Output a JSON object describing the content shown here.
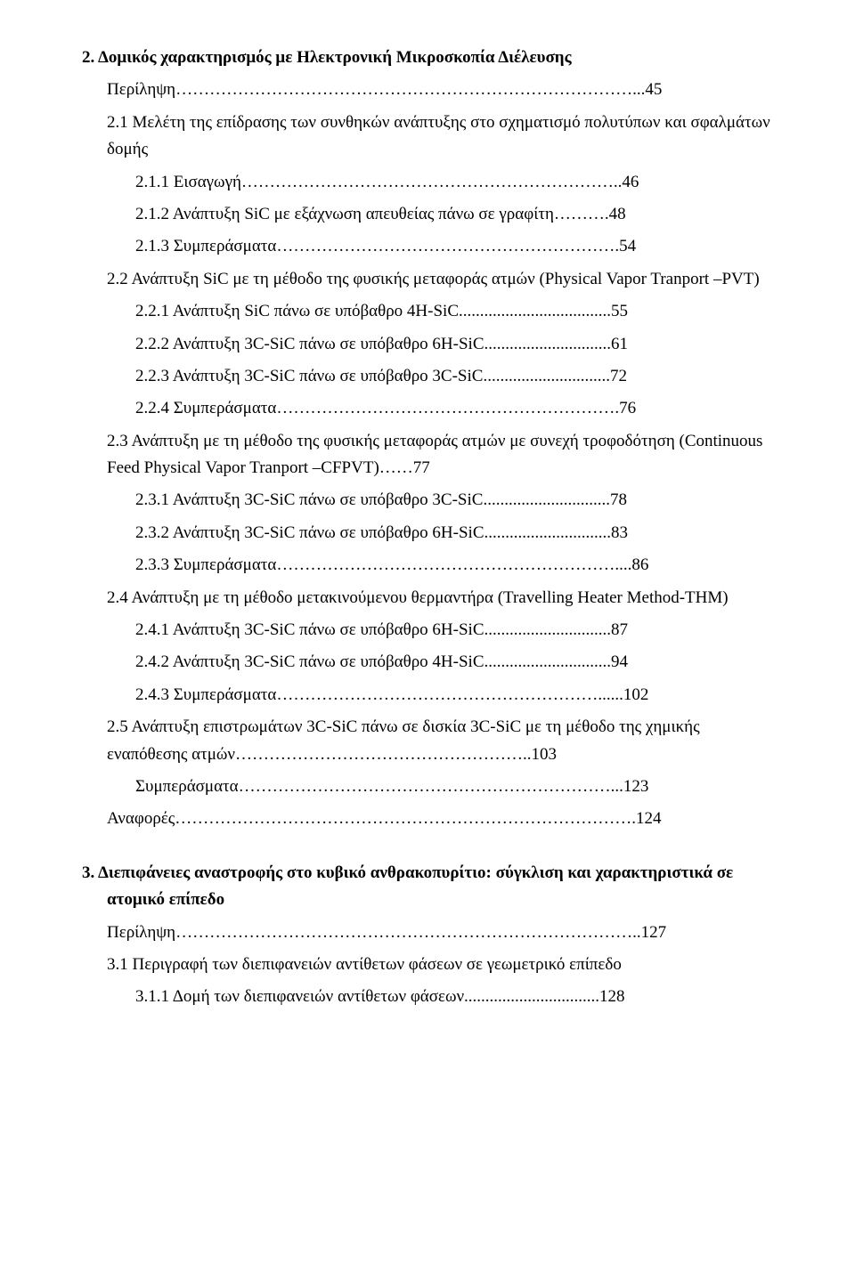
{
  "lines": [
    {
      "cls": "l0",
      "text": "2.  Δομικός χαρακτηρισμός με Ηλεκτρονική Μικροσκοπία Διέλευσης"
    },
    {
      "cls": "l1",
      "text": "Περίληψη………………………………………………………………………...45"
    },
    {
      "cls": "l1",
      "text": "2.1 Μελέτη της επίδρασης των συνθηκών ανάπτυξης στο σχηματισμό πολυτύπων και σφαλμάτων δομής"
    },
    {
      "cls": "l2",
      "text": "2.1.1   Εισαγωγή…………………………………………………………..46"
    },
    {
      "cls": "l2",
      "text": "2.1.2   Ανάπτυξη SiC με εξάχνωση απευθείας πάνω σε γραφίτη……….48"
    },
    {
      "cls": "l2",
      "text": "2.1.3   Συμπεράσματα…………………………………………………….54"
    },
    {
      "cls": "l1",
      "text": "2.2 Ανάπτυξη SiC με τη μέθοδο της φυσικής μεταφοράς ατμών (Physical Vapor Tranport –PVT)"
    },
    {
      "cls": "l2",
      "text": "2.2.1   Ανάπτυξη SiC πάνω σε υπόβαθρο 4H-SiC....................................55"
    },
    {
      "cls": "l2",
      "text": "2.2.2   Ανάπτυξη 3C-SiC πάνω σε υπόβαθρο 6H-SiC..............................61"
    },
    {
      "cls": "l2",
      "text": "2.2.3   Ανάπτυξη 3C-SiC πάνω σε υπόβαθρο 3C-SiC..............................72"
    },
    {
      "cls": "l2",
      "text": "2.2.4   Συμπεράσματα…………………………………………………….76"
    },
    {
      "cls": "l1",
      "text": "2.3 Ανάπτυξη με τη μέθοδο της φυσικής μεταφοράς ατμών με συνεχή τροφοδότηση (Continuous Feed Physical Vapor Tranport –CFPVT)……77"
    },
    {
      "cls": "l2",
      "text": "2.3.1   Ανάπτυξη 3C-SiC πάνω σε υπόβαθρο 3C-SiC..............................78"
    },
    {
      "cls": "l2",
      "text": "2.3.2   Ανάπτυξη 3C-SiC πάνω σε υπόβαθρο 6H-SiC..............................83"
    },
    {
      "cls": "l2",
      "text": "2.3.3   Συμπεράσματα……………………………………………………....86"
    },
    {
      "cls": "l1",
      "text": "2.4 Ανάπτυξη με τη μέθοδο μετακινούμενου θερμαντήρα (Travelling Heater Method-THM)"
    },
    {
      "cls": "l2",
      "text": "2.4.1   Ανάπτυξη 3C-SiC πάνω σε υπόβαθρο 6H-SiC..............................87"
    },
    {
      "cls": "l2",
      "text": "2.4.2   Ανάπτυξη 3C-SiC πάνω σε υπόβαθρο 4H-SiC..............................94"
    },
    {
      "cls": "l2",
      "text": "2.4.3   Συμπεράσματα…………………………………………………......102"
    },
    {
      "cls": "l1",
      "text": "2.5 Ανάπτυξη επιστρωμάτων 3C-SiC πάνω σε δισκία 3C-SiC με τη μέθοδο της χημικής εναπόθεσης ατμών……………………………………………..103"
    },
    {
      "cls": "l2",
      "text": "Συμπεράσματα…………………………………………………………...123"
    },
    {
      "cls": "l1",
      "text": "Αναφορές……………………………………………………………………….124"
    },
    {
      "cls": "l0b",
      "text": "3.  Διεπιφάνειες αναστροφής στο κυβικό ανθρακοπυρίτιο: σύγκλιση και χαρακτηριστικά σε ατομικό επίπεδο"
    },
    {
      "cls": "l1",
      "text": "Περίληψη………………………………………………………………………..127"
    },
    {
      "cls": "l1",
      "text": "3.1 Περιγραφή των διεπιφανειών αντίθετων φάσεων σε γεωμετρικό επίπεδο"
    },
    {
      "cls": "l2",
      "text": "3.1.1   Δομή των διεπιφανειών αντίθετων φάσεων................................128"
    }
  ]
}
